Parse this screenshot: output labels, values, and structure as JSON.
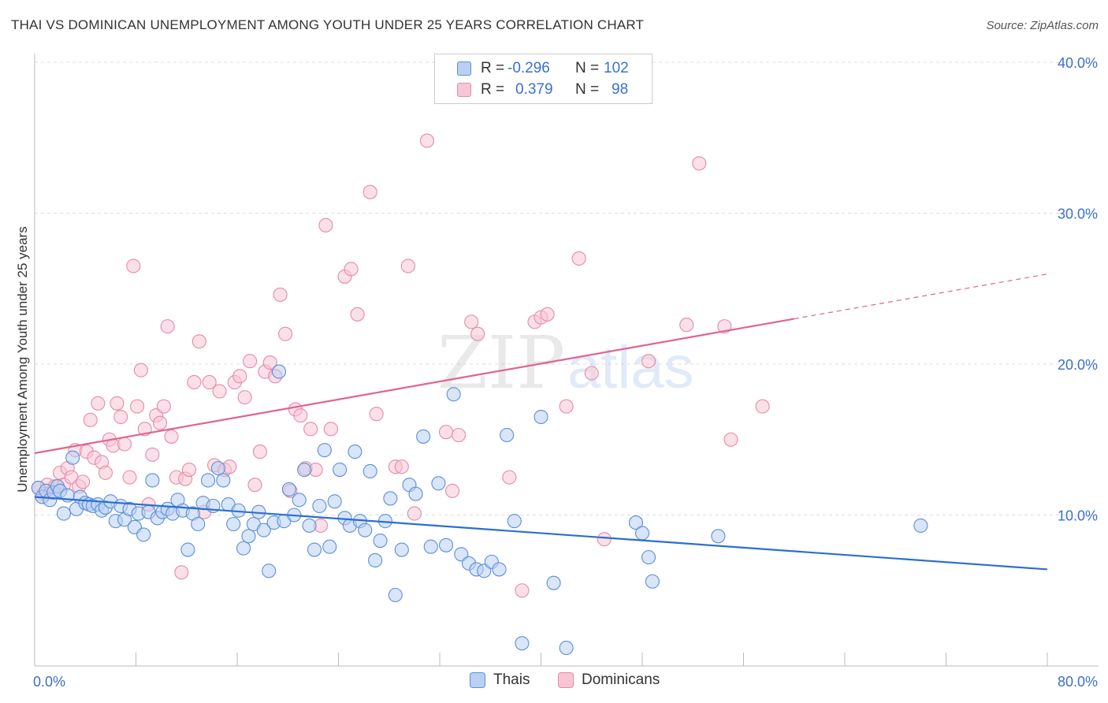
{
  "title": "THAI VS DOMINICAN UNEMPLOYMENT AMONG YOUTH UNDER 25 YEARS CORRELATION CHART",
  "source": "Source: ZipAtlas.com",
  "watermark": {
    "zip": "ZIP",
    "atlas": "atlas"
  },
  "stats": {
    "r_label": "R =",
    "n_label": "N =",
    "rows": [
      {
        "series": "Thais",
        "r": "-0.296",
        "n": "102",
        "color": "#5b8fd9",
        "fill": "#b9d0f2"
      },
      {
        "series": "Dominicans",
        "r": "0.379",
        "n": "98",
        "color": "#e68aa8",
        "fill": "#f7c6d5"
      }
    ]
  },
  "legend": [
    {
      "label": "Thais",
      "color": "#5b8fd9",
      "fill": "#b9d0f2"
    },
    {
      "label": "Dominicans",
      "color": "#e68aa8",
      "fill": "#f7c6d5"
    }
  ],
  "colors": {
    "blue_line": "#2a6fd0",
    "pink_line": "#e0648f",
    "grid": "#dddddd",
    "axis_text": "#3b6fcf"
  },
  "chart_data": {
    "type": "scatter",
    "title": "THAI VS DOMINICAN UNEMPLOYMENT AMONG YOUTH UNDER 25 YEARS CORRELATION CHART",
    "xlabel": "",
    "ylabel": "Unemployment Among Youth under 25 years",
    "xlim": [
      0,
      80
    ],
    "ylim": [
      0,
      40
    ],
    "x_tick_labels": [
      "0.0%",
      "80.0%"
    ],
    "y_ticks": [
      10,
      20,
      30,
      40
    ],
    "y_tick_labels": [
      "10.0%",
      "20.0%",
      "30.0%",
      "40.0%"
    ],
    "grid": true,
    "legend_position": "bottom-center",
    "series": [
      {
        "name": "Thais",
        "trend": {
          "x0": 0,
          "y0": 11.2,
          "x1": 80,
          "y1": 6.4
        },
        "points": [
          [
            0.3,
            11.8
          ],
          [
            0.6,
            11.2
          ],
          [
            0.9,
            11.6
          ],
          [
            1.2,
            11.0
          ],
          [
            1.5,
            11.5
          ],
          [
            1.8,
            11.9
          ],
          [
            2.0,
            11.6
          ],
          [
            2.3,
            10.1
          ],
          [
            2.6,
            11.3
          ],
          [
            3.0,
            13.8
          ],
          [
            3.3,
            10.4
          ],
          [
            3.6,
            11.2
          ],
          [
            4.0,
            10.8
          ],
          [
            4.3,
            10.7
          ],
          [
            4.6,
            10.6
          ],
          [
            5.0,
            10.7
          ],
          [
            5.3,
            10.3
          ],
          [
            5.6,
            10.5
          ],
          [
            6.0,
            10.9
          ],
          [
            6.4,
            9.6
          ],
          [
            6.8,
            10.6
          ],
          [
            7.1,
            9.7
          ],
          [
            7.5,
            10.4
          ],
          [
            7.9,
            9.2
          ],
          [
            8.2,
            10.1
          ],
          [
            8.6,
            8.7
          ],
          [
            9.0,
            10.2
          ],
          [
            9.3,
            12.3
          ],
          [
            9.7,
            9.8
          ],
          [
            10.1,
            10.2
          ],
          [
            10.5,
            10.4
          ],
          [
            10.9,
            10.1
          ],
          [
            11.3,
            11.0
          ],
          [
            11.7,
            10.3
          ],
          [
            12.1,
            7.7
          ],
          [
            12.5,
            10.1
          ],
          [
            12.9,
            9.4
          ],
          [
            13.3,
            10.8
          ],
          [
            13.7,
            12.3
          ],
          [
            14.1,
            10.6
          ],
          [
            14.5,
            13.1
          ],
          [
            14.9,
            12.3
          ],
          [
            15.3,
            10.7
          ],
          [
            15.7,
            9.4
          ],
          [
            16.1,
            10.3
          ],
          [
            16.5,
            7.8
          ],
          [
            16.9,
            8.6
          ],
          [
            17.3,
            9.4
          ],
          [
            17.7,
            10.2
          ],
          [
            18.1,
            9.0
          ],
          [
            18.5,
            6.3
          ],
          [
            18.9,
            9.5
          ],
          [
            19.3,
            19.5
          ],
          [
            19.7,
            9.6
          ],
          [
            20.1,
            11.7
          ],
          [
            20.5,
            10.0
          ],
          [
            20.9,
            11.0
          ],
          [
            21.3,
            13.0
          ],
          [
            21.7,
            9.3
          ],
          [
            22.1,
            7.7
          ],
          [
            22.5,
            10.6
          ],
          [
            22.9,
            14.3
          ],
          [
            23.3,
            7.9
          ],
          [
            23.7,
            10.9
          ],
          [
            24.1,
            13.0
          ],
          [
            24.5,
            9.8
          ],
          [
            24.9,
            9.3
          ],
          [
            25.3,
            14.2
          ],
          [
            25.7,
            9.6
          ],
          [
            26.1,
            9.0
          ],
          [
            26.5,
            12.9
          ],
          [
            26.9,
            7.0
          ],
          [
            27.3,
            8.3
          ],
          [
            27.7,
            9.6
          ],
          [
            28.1,
            11.1
          ],
          [
            28.5,
            4.7
          ],
          [
            29.0,
            7.7
          ],
          [
            29.6,
            12.0
          ],
          [
            30.1,
            11.4
          ],
          [
            30.7,
            15.2
          ],
          [
            31.3,
            7.9
          ],
          [
            31.9,
            12.1
          ],
          [
            32.5,
            8.0
          ],
          [
            33.1,
            18.0
          ],
          [
            33.7,
            7.4
          ],
          [
            34.3,
            6.8
          ],
          [
            34.9,
            6.4
          ],
          [
            35.5,
            6.3
          ],
          [
            36.1,
            6.9
          ],
          [
            36.7,
            6.4
          ],
          [
            37.3,
            15.3
          ],
          [
            37.9,
            9.6
          ],
          [
            38.5,
            1.5
          ],
          [
            40.0,
            16.5
          ],
          [
            41.0,
            5.5
          ],
          [
            42.0,
            1.2
          ],
          [
            47.5,
            9.5
          ],
          [
            48.0,
            8.8
          ],
          [
            48.5,
            7.2
          ],
          [
            48.8,
            5.6
          ],
          [
            54.0,
            8.6
          ],
          [
            70.0,
            9.3
          ]
        ]
      },
      {
        "name": "Dominicans",
        "trend": {
          "x0": 0,
          "y0": 14.1,
          "x1": 60,
          "y1": 23.0
        },
        "points": [
          [
            0.3,
            11.8
          ],
          [
            0.7,
            11.4
          ],
          [
            1.0,
            12.0
          ],
          [
            1.3,
            11.5
          ],
          [
            1.6,
            11.9
          ],
          [
            2.0,
            12.8
          ],
          [
            2.3,
            12.0
          ],
          [
            2.6,
            13.1
          ],
          [
            2.9,
            12.5
          ],
          [
            3.2,
            14.3
          ],
          [
            3.5,
            11.9
          ],
          [
            3.8,
            12.2
          ],
          [
            4.1,
            14.2
          ],
          [
            4.4,
            16.3
          ],
          [
            4.7,
            13.8
          ],
          [
            5.0,
            17.4
          ],
          [
            5.3,
            13.5
          ],
          [
            5.6,
            12.8
          ],
          [
            5.9,
            15.0
          ],
          [
            6.2,
            14.6
          ],
          [
            6.5,
            17.4
          ],
          [
            6.8,
            16.5
          ],
          [
            7.1,
            14.7
          ],
          [
            7.5,
            12.5
          ],
          [
            7.8,
            26.5
          ],
          [
            8.1,
            17.2
          ],
          [
            8.4,
            19.6
          ],
          [
            8.7,
            15.7
          ],
          [
            9.0,
            10.7
          ],
          [
            9.3,
            14.0
          ],
          [
            9.6,
            16.6
          ],
          [
            9.9,
            16.1
          ],
          [
            10.2,
            17.2
          ],
          [
            10.5,
            22.5
          ],
          [
            10.8,
            15.2
          ],
          [
            11.2,
            12.5
          ],
          [
            11.6,
            6.2
          ],
          [
            11.9,
            12.4
          ],
          [
            12.2,
            13.0
          ],
          [
            12.6,
            18.8
          ],
          [
            13.0,
            21.5
          ],
          [
            13.4,
            10.2
          ],
          [
            13.8,
            18.8
          ],
          [
            14.2,
            13.3
          ],
          [
            14.6,
            18.2
          ],
          [
            15.0,
            13.0
          ],
          [
            15.4,
            13.2
          ],
          [
            15.8,
            18.8
          ],
          [
            16.2,
            19.2
          ],
          [
            16.6,
            17.8
          ],
          [
            17.0,
            20.2
          ],
          [
            17.4,
            12.0
          ],
          [
            17.8,
            14.2
          ],
          [
            18.2,
            19.5
          ],
          [
            18.6,
            20.1
          ],
          [
            19.0,
            19.2
          ],
          [
            19.4,
            24.6
          ],
          [
            19.8,
            22.0
          ],
          [
            20.2,
            11.6
          ],
          [
            20.6,
            17.0
          ],
          [
            21.0,
            16.6
          ],
          [
            21.4,
            13.1
          ],
          [
            21.8,
            15.7
          ],
          [
            22.2,
            13.0
          ],
          [
            22.6,
            9.3
          ],
          [
            23.0,
            29.2
          ],
          [
            23.4,
            15.7
          ],
          [
            24.5,
            25.8
          ],
          [
            25.0,
            26.3
          ],
          [
            25.5,
            23.3
          ],
          [
            26.5,
            31.4
          ],
          [
            27.0,
            16.7
          ],
          [
            28.5,
            13.2
          ],
          [
            29.0,
            13.2
          ],
          [
            29.5,
            26.5
          ],
          [
            30.0,
            10.1
          ],
          [
            31.0,
            34.8
          ],
          [
            32.5,
            15.5
          ],
          [
            33.0,
            11.6
          ],
          [
            33.5,
            15.3
          ],
          [
            34.5,
            22.8
          ],
          [
            35.0,
            22.0
          ],
          [
            37.5,
            12.5
          ],
          [
            38.5,
            5.0
          ],
          [
            39.5,
            22.8
          ],
          [
            40.0,
            23.1
          ],
          [
            40.5,
            23.3
          ],
          [
            42.0,
            17.2
          ],
          [
            43.0,
            27.0
          ],
          [
            44.0,
            19.4
          ],
          [
            45.0,
            8.4
          ],
          [
            48.5,
            20.2
          ],
          [
            51.5,
            22.6
          ],
          [
            52.5,
            33.3
          ],
          [
            54.5,
            22.5
          ],
          [
            55.0,
            15.0
          ],
          [
            57.5,
            17.2
          ],
          [
            0.6,
            11.2
          ]
        ]
      }
    ]
  }
}
